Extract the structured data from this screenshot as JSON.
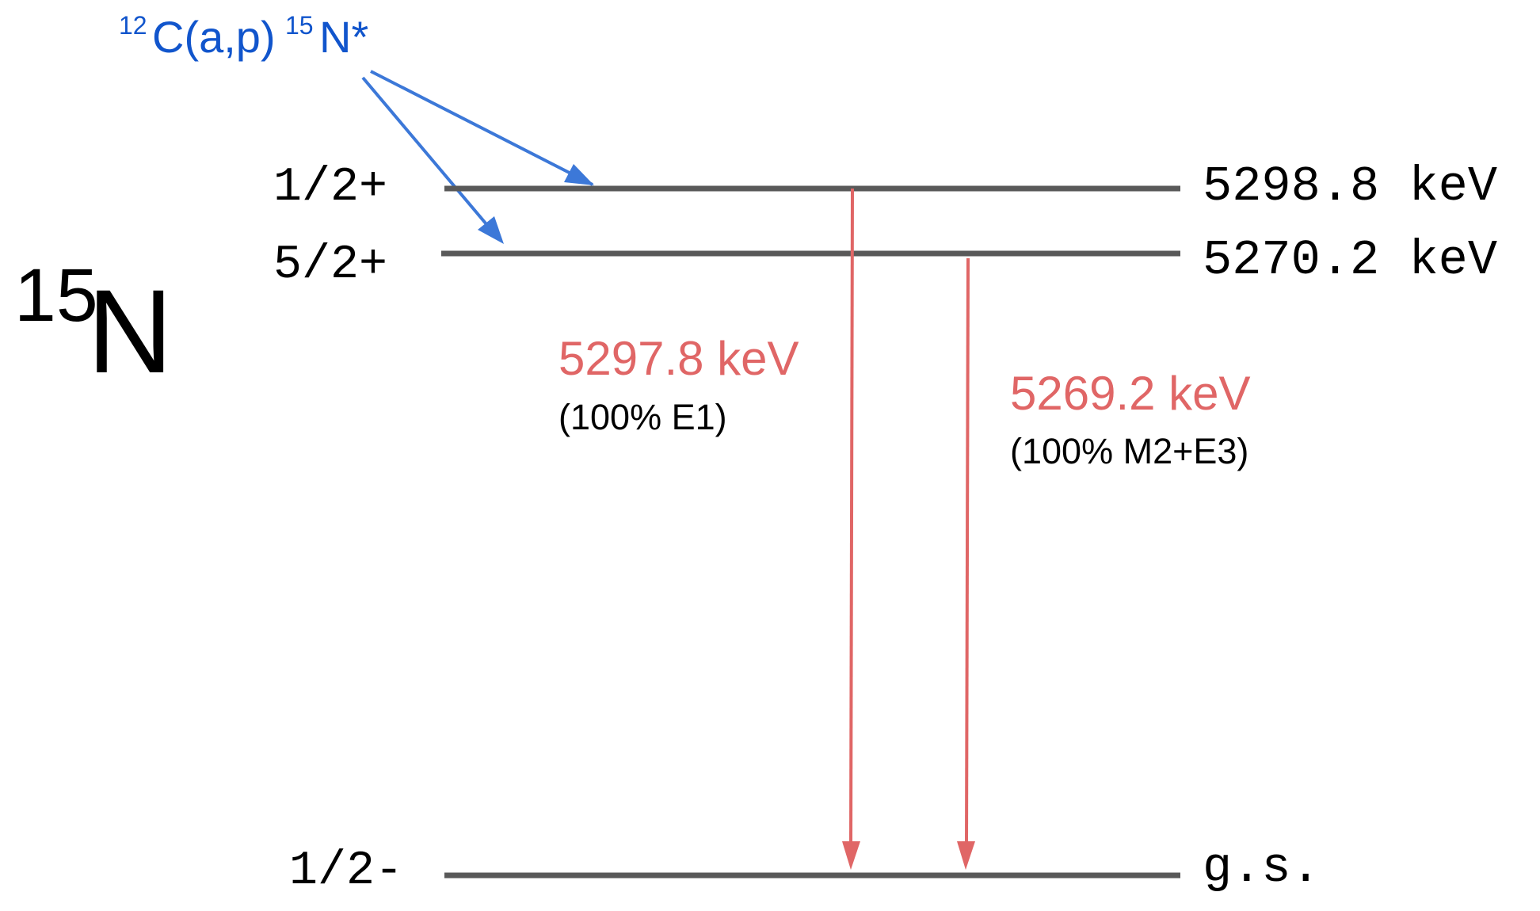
{
  "nucleus": {
    "mass_number": "15",
    "symbol": "N"
  },
  "reaction": {
    "pre_superscript": "12",
    "main": "C(a,p)",
    "product_superscript": "15",
    "product": "N*"
  },
  "levels": [
    {
      "id": "level-5298",
      "spin_parity": "1/2+",
      "energy_label": "5298.8 keV"
    },
    {
      "id": "level-5270",
      "spin_parity": "5/2+",
      "energy_label": "5270.2 keV"
    },
    {
      "id": "level-gs",
      "spin_parity": "1/2-",
      "energy_label": "g.s."
    }
  ],
  "transitions": [
    {
      "id": "gamma-5297",
      "energy_label": "5297.8 keV",
      "detail": "(100% E1)"
    },
    {
      "id": "gamma-5269",
      "energy_label": "5269.2 keV",
      "detail": "(100% M2+E3)"
    }
  ],
  "colors": {
    "level_line": "#595959",
    "gamma": "#e06666",
    "reaction": "#3c78d8",
    "text": "#000000"
  }
}
